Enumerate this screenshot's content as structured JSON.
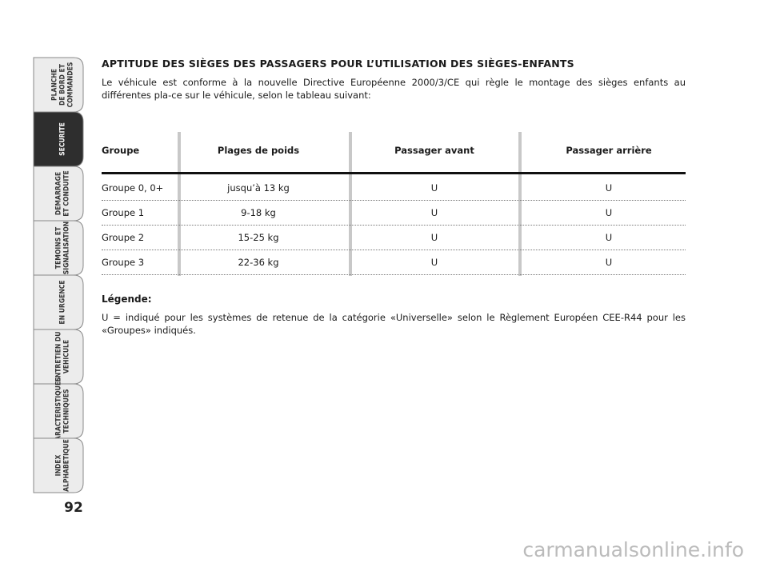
{
  "sidebar": {
    "tabs": [
      {
        "lines": [
          "PLANCHE",
          "DE BORD ET",
          "COMMANDES"
        ]
      },
      {
        "lines": [
          "SECURITE"
        ],
        "active": true
      },
      {
        "lines": [
          "DEMARRAGE",
          "ET CONDUITE"
        ]
      },
      {
        "lines": [
          "TEMOINS ET",
          "SIGNALISATION"
        ]
      },
      {
        "lines": [
          "EN URGENCE"
        ]
      },
      {
        "lines": [
          "ENTRETIEN DU",
          "VEHICULE"
        ]
      },
      {
        "lines": [
          "CARACTERISTIQUES",
          "TECHNIQUES"
        ]
      },
      {
        "lines": [
          "INDEX",
          "ALPHABETIQUE"
        ]
      }
    ],
    "page_number": "92"
  },
  "section": {
    "title": "APTITUDE DES SIÈGES DES PASSAGERS POUR L’UTILISATION DES SIÈGES-ENFANTS",
    "intro": "Le véhicule est conforme à la nouvelle Directive Européenne 2000/3/CE qui règle le montage des sièges enfants au différentes pla-ce sur le véhicule, selon le tableau suivant:"
  },
  "table": {
    "headers": [
      "Groupe",
      "Plages de poids",
      "Passager avant",
      "Passager arrière"
    ],
    "rows": [
      [
        "Groupe 0, 0+",
        "jusqu’à 13 kg",
        "U",
        "U"
      ],
      [
        "Groupe 1",
        "9-18 kg",
        "U",
        "U"
      ],
      [
        "Groupe 2",
        "15-25 kg",
        "U",
        "U"
      ],
      [
        "Groupe 3",
        "22-36 kg",
        "U",
        "U"
      ]
    ]
  },
  "legend": {
    "title": "Légende:",
    "text": "U = indiqué pour les systèmes de retenue de la catégorie «Universelle» selon le Règlement Européen CEE-R44 pour les «Groupes» indiqués."
  },
  "watermark": "carmanualsonline.info"
}
